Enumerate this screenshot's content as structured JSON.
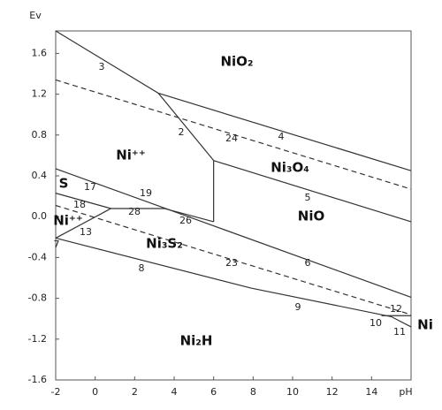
{
  "chart_data": {
    "type": "line",
    "y_label": "Ev",
    "x_label": "pH",
    "xlim": [
      -2,
      16
    ],
    "ylim": [
      -1.6,
      1.82
    ],
    "xticks": [
      -2,
      0,
      2,
      4,
      6,
      8,
      10,
      12,
      14
    ],
    "yticks": [
      1.6,
      1.2,
      0.8,
      0.4,
      {
        "value": 0,
        "label": "0.0"
      },
      -0.4,
      -0.8,
      -1.2,
      -1.6
    ],
    "series": [
      {
        "color": "#333333",
        "dash": false,
        "x": [
          -2,
          3.2,
          6.0
        ],
        "values": [
          1.82,
          1.21,
          0.55
        ]
      },
      {
        "color": "#333333",
        "dash": false,
        "x": [
          6.0,
          6.0
        ],
        "values": [
          0.55,
          -0.05
        ]
      },
      {
        "color": "#333333",
        "dash": false,
        "x": [
          3.2,
          16
        ],
        "values": [
          1.21,
          0.45
        ]
      },
      {
        "color": "#333333",
        "dash": true,
        "x": [
          -2,
          16
        ],
        "values": [
          1.34,
          0.27
        ]
      },
      {
        "color": "#333333",
        "dash": false,
        "x": [
          6.0,
          16
        ],
        "values": [
          0.55,
          -0.05
        ]
      },
      {
        "color": "#333333",
        "dash": false,
        "x": [
          -2,
          16
        ],
        "values": [
          0.47,
          -0.79
        ]
      },
      {
        "color": "#333333",
        "dash": false,
        "x": [
          -2,
          0.8,
          3.5,
          6.0
        ],
        "values": [
          0.23,
          0.08,
          0.08,
          -0.05
        ]
      },
      {
        "color": "#333333",
        "dash": false,
        "x": [
          -2,
          0.8
        ],
        "values": [
          -0.21,
          0.08
        ]
      },
      {
        "color": "#333333",
        "dash": true,
        "x": [
          -2,
          16
        ],
        "values": [
          0.11,
          -0.96
        ]
      },
      {
        "color": "#333333",
        "dash": false,
        "x": [
          -2,
          7.9,
          15,
          16
        ],
        "values": [
          -0.21,
          -0.7,
          -0.98,
          -1.08
        ]
      },
      {
        "color": "#333333",
        "dash": false,
        "x": [
          14.5,
          16
        ],
        "values": [
          -0.97,
          -0.97
        ]
      }
    ],
    "regions": [
      "NiO₂",
      "Ni⁺⁺",
      "Ni₃O₄",
      "NiO",
      "S",
      "Ni⁺⁺",
      "Ni₃S₂",
      "Ni₂H",
      "Ni"
    ],
    "annotations": [
      "3",
      "2",
      "24",
      "4",
      "5",
      "17",
      "19",
      "28",
      "26",
      "18",
      "13",
      "7",
      "23",
      "6",
      "8",
      "9",
      "12",
      "10",
      "11"
    ]
  }
}
